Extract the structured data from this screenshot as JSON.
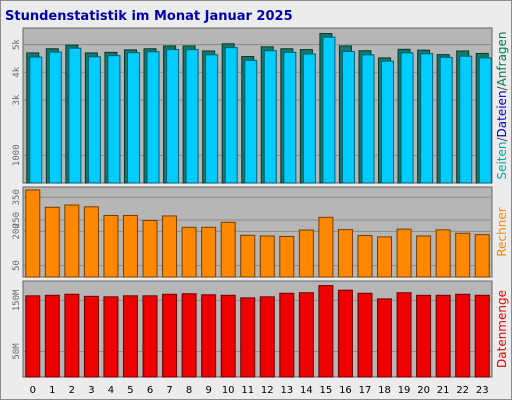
{
  "chart_data": {
    "type": "bar",
    "title": "Stundenstatistik im Monat Januar 2025",
    "categories": [
      "0",
      "1",
      "2",
      "3",
      "4",
      "5",
      "6",
      "7",
      "8",
      "9",
      "10",
      "11",
      "12",
      "13",
      "14",
      "15",
      "16",
      "17",
      "18",
      "19",
      "20",
      "21",
      "22",
      "23"
    ],
    "panels": [
      {
        "id": "requests",
        "yticks": [
          {
            "value": 1000,
            "label": "1000"
          },
          {
            "value": 3000,
            "label": "3k"
          },
          {
            "value": 4000,
            "label": "4k"
          },
          {
            "value": 5000,
            "label": "5k"
          }
        ],
        "ylim": [
          0,
          5600
        ],
        "side_labels": [
          {
            "text": "Seiten",
            "color": "#00aaaa"
          },
          {
            "text": "/",
            "color": "#444444"
          },
          {
            "text": "Dateien",
            "color": "#0000cc"
          },
          {
            "text": "/",
            "color": "#444444"
          },
          {
            "text": "Anfragen",
            "color": "#007755"
          }
        ],
        "series": [
          {
            "color": "#127a6a",
            "values": [
              4700,
              4850,
              4980,
              4700,
              4720,
              4810,
              4850,
              4950,
              4950,
              4770,
              5030,
              4570,
              4920,
              4850,
              4820,
              5400,
              4950,
              4780,
              4520,
              4830,
              4800,
              4640,
              4770,
              4680
            ]
          },
          {
            "color": "#00ccff",
            "values": [
              4550,
              4730,
              4870,
              4560,
              4600,
              4710,
              4740,
              4820,
              4820,
              4630,
              4890,
              4430,
              4780,
              4720,
              4660,
              5270,
              4750,
              4630,
              4400,
              4700,
              4670,
              4540,
              4580,
              4520
            ]
          }
        ]
      },
      {
        "id": "hosts",
        "yticks": [
          {
            "value": 50,
            "label": "50"
          },
          {
            "value": 200,
            "label": "200"
          },
          {
            "value": 250,
            "label": "250"
          },
          {
            "value": 350,
            "label": "350"
          }
        ],
        "ylim": [
          0,
          395
        ],
        "side_labels": [
          {
            "text": "Rechner",
            "color": "#ff8800"
          }
        ],
        "series": [
          {
            "color": "#ff8800",
            "values": [
              382,
              306,
              316,
              308,
              270,
              270,
              248,
              268,
              218,
              218,
              240,
              183,
              180,
              178,
              206,
              262,
              208,
              182,
              176,
              210,
              180,
              207,
              192,
              186
            ]
          }
        ]
      },
      {
        "id": "volume",
        "yticks": [
          {
            "value": 50,
            "label": "50M"
          },
          {
            "value": 150,
            "label": "150M"
          }
        ],
        "ylim": [
          0,
          188
        ],
        "side_labels": [
          {
            "text": "Datenmenge",
            "color": "#ee0000"
          }
        ],
        "series": [
          {
            "color": "#ee0000",
            "values": [
              159,
              160,
              162,
              158,
              157,
              159,
              159,
              162,
              163,
              161,
              160,
              155,
              157,
              164,
              165,
              179,
              170,
              164,
              153,
              165,
              160,
              160,
              162,
              160
            ]
          }
        ]
      }
    ]
  }
}
